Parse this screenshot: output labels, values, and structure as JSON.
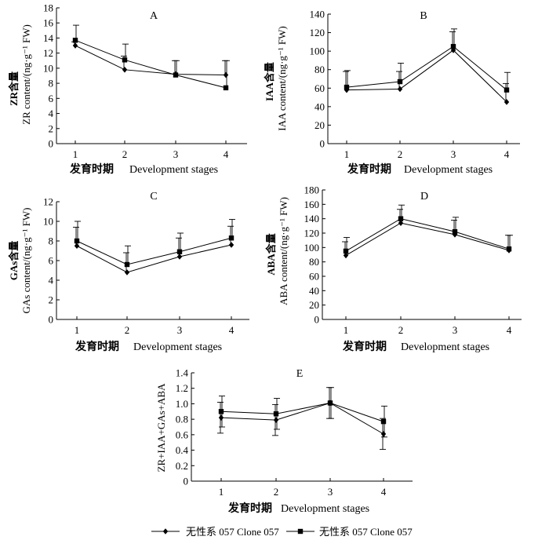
{
  "chart_data": [
    {
      "id": "A",
      "type": "line",
      "panel_label": "A",
      "ylabel_cn": "ZR含量",
      "ylabel_en": "ZR content/(ng·g⁻¹ FW)",
      "xlabel_cn": "发育时期",
      "xlabel_en": "Development stages",
      "categories": [
        "1",
        "2",
        "3",
        "4"
      ],
      "ylim": [
        0,
        18
      ],
      "yticks": [
        "0",
        "2",
        "4",
        "6",
        "8",
        "10",
        "12",
        "14",
        "16",
        "18"
      ],
      "series": [
        {
          "name": "diamond",
          "values": [
            13.0,
            9.8,
            9.2,
            9.1
          ],
          "err": [
            0.5,
            1.8,
            1.8,
            1.9
          ]
        },
        {
          "name": "square",
          "values": [
            13.7,
            11.1,
            9.1,
            7.4
          ],
          "err": [
            2.0,
            2.1,
            1.9,
            3.6
          ]
        }
      ]
    },
    {
      "id": "B",
      "type": "line",
      "panel_label": "B",
      "ylabel_cn": "IAA含量",
      "ylabel_en": "IAA content/(ng·g⁻¹ FW)",
      "xlabel_cn": "发育时期",
      "xlabel_en": "Development stages",
      "categories": [
        "1",
        "2",
        "3",
        "4"
      ],
      "ylim": [
        0,
        140
      ],
      "yticks": [
        "0",
        "20",
        "40",
        "60",
        "80",
        "100",
        "120",
        "140"
      ],
      "series": [
        {
          "name": "diamond",
          "values": [
            58,
            59,
            101,
            45
          ],
          "err": [
            20,
            19,
            20,
            20
          ]
        },
        {
          "name": "square",
          "values": [
            61,
            67,
            105,
            58
          ],
          "err": [
            18,
            20,
            19,
            19
          ]
        }
      ]
    },
    {
      "id": "C",
      "type": "line",
      "panel_label": "C",
      "ylabel_cn": "GAs含量",
      "ylabel_en": "GAs content/(ng·g⁻¹ FW)",
      "xlabel_cn": "发育时期",
      "xlabel_en": "Development stages",
      "categories": [
        "1",
        "2",
        "3",
        "4"
      ],
      "ylim": [
        0,
        12
      ],
      "yticks": [
        "0",
        "2",
        "4",
        "6",
        "8",
        "10",
        "12"
      ],
      "series": [
        {
          "name": "diamond",
          "values": [
            7.5,
            4.8,
            6.4,
            7.6
          ],
          "err": [
            1.9,
            2.0,
            1.9,
            1.9
          ]
        },
        {
          "name": "square",
          "values": [
            8.0,
            5.6,
            6.9,
            8.3
          ],
          "err": [
            2.0,
            1.9,
            1.9,
            1.9
          ]
        }
      ]
    },
    {
      "id": "D",
      "type": "line",
      "panel_label": "D",
      "ylabel_cn": "ABA含量",
      "ylabel_en": "ABA content/(ng·g⁻¹ FW)",
      "xlabel_cn": "发育时期",
      "xlabel_en": "Development stages",
      "categories": [
        "1",
        "2",
        "3",
        "4"
      ],
      "ylim": [
        0,
        180
      ],
      "yticks": [
        "0",
        "20",
        "40",
        "60",
        "80",
        "100",
        "120",
        "140",
        "160",
        "180"
      ],
      "series": [
        {
          "name": "diamond",
          "values": [
            89,
            134,
            118,
            96
          ],
          "err": [
            19,
            19,
            20,
            21
          ]
        },
        {
          "name": "square",
          "values": [
            95,
            140,
            122,
            98
          ],
          "err": [
            19,
            19,
            20,
            19
          ]
        }
      ]
    },
    {
      "id": "E",
      "type": "line",
      "panel_label": "E",
      "ylabel_cn": "",
      "ylabel_en": "ZR+IAA+GAs+ABA",
      "xlabel_cn": "发育时期",
      "xlabel_en": "Development stages",
      "categories": [
        "1",
        "2",
        "3",
        "4"
      ],
      "ylim": [
        0,
        1.4
      ],
      "yticks": [
        "0",
        "0.2",
        "0.4",
        "0.6",
        "0.8",
        "1.0",
        "1.2",
        "1.4"
      ],
      "series": [
        {
          "name": "diamond",
          "values": [
            0.82,
            0.79,
            1.01,
            0.61
          ],
          "err": [
            0.2,
            0.2,
            0.2,
            0.2
          ]
        },
        {
          "name": "square",
          "values": [
            0.9,
            0.87,
            1.01,
            0.77
          ],
          "err": [
            0.2,
            0.2,
            0.2,
            0.2
          ]
        }
      ]
    }
  ],
  "legend": [
    {
      "marker": "diamond",
      "label": "无性系 057 Clone 057"
    },
    {
      "marker": "square",
      "label": "无性系 057 Clone 057"
    }
  ]
}
